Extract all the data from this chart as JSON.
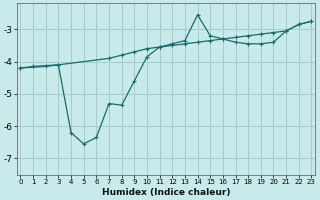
{
  "xlabel": "Humidex (Indice chaleur)",
  "bg_color": "#c8eaea",
  "grid_color": "#a8cccc",
  "line_color": "#1a6b6b",
  "x_ticks": [
    0,
    1,
    2,
    3,
    4,
    5,
    6,
    7,
    8,
    9,
    10,
    11,
    12,
    13,
    14,
    15,
    16,
    17,
    18,
    19,
    20,
    21,
    22,
    23
  ],
  "y_ticks": [
    -7,
    -6,
    -5,
    -4,
    -3
  ],
  "ylim": [
    -7.5,
    -2.2
  ],
  "xlim": [
    -0.3,
    23.3
  ],
  "curve1_x": [
    0,
    2,
    3,
    7,
    8,
    9,
    10,
    11,
    12,
    13,
    14,
    15,
    16,
    17,
    18,
    19,
    20,
    21,
    22,
    23
  ],
  "curve1_y": [
    -4.2,
    -4.15,
    -4.1,
    -3.9,
    -3.8,
    -3.7,
    -3.6,
    -3.55,
    -3.5,
    -3.45,
    -3.4,
    -3.35,
    -3.3,
    -3.25,
    -3.2,
    -3.15,
    -3.1,
    -3.05,
    -2.85,
    -2.75
  ],
  "curve2_x": [
    0,
    1,
    3,
    4,
    5,
    6,
    7,
    8,
    9,
    10,
    11,
    12,
    13,
    14,
    15,
    16,
    17,
    18,
    19,
    20,
    21,
    22,
    23
  ],
  "curve2_y": [
    -4.2,
    -4.15,
    -4.1,
    -6.2,
    -6.55,
    -6.35,
    -5.3,
    -5.35,
    -4.6,
    -3.85,
    -3.55,
    -3.45,
    -3.35,
    -2.55,
    -3.2,
    -3.3,
    -3.4,
    -3.45,
    -3.45,
    -3.4,
    -3.05,
    -2.85,
    -2.75
  ]
}
